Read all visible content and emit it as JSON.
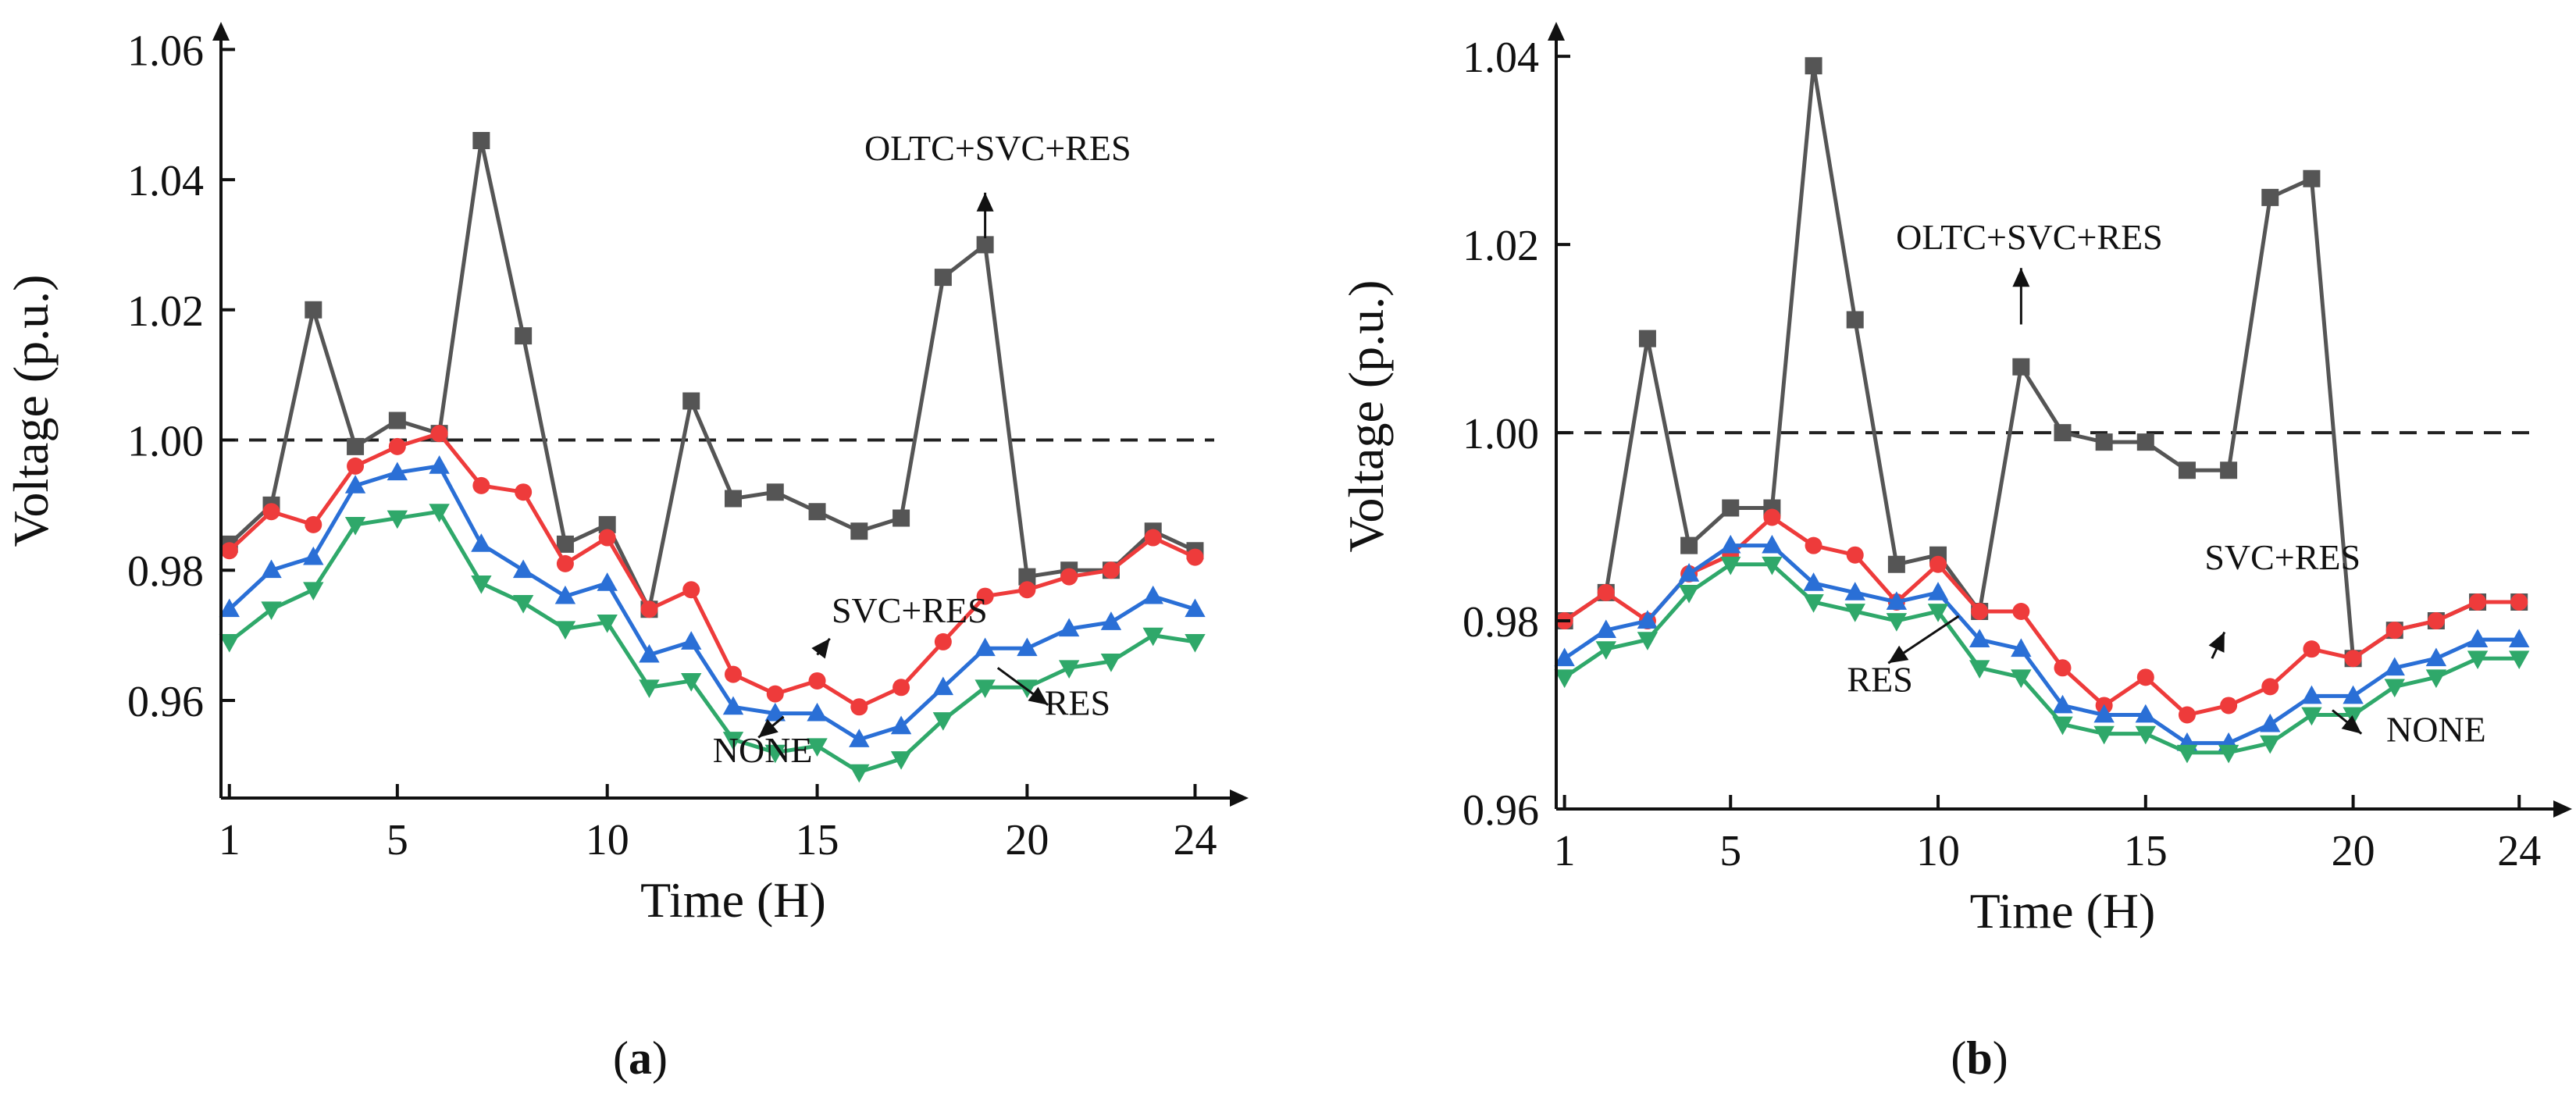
{
  "chart_data": [
    {
      "type": "line",
      "panel": "a",
      "caption_open": "(",
      "caption_letter": "a",
      "caption_close": ")",
      "xlabel": "Time (H)",
      "ylabel": "Voltage (p.u.)",
      "xlim": [
        0.8,
        25.2
      ],
      "ylim": [
        0.945,
        1.064
      ],
      "xticks": [
        1,
        5,
        10,
        15,
        20,
        24
      ],
      "xtick_labels": [
        "1",
        "5",
        "10",
        "15",
        "20",
        "24"
      ],
      "yticks": [
        0.96,
        0.98,
        1.0,
        1.02,
        1.04,
        1.06
      ],
      "ytick_labels": [
        "0.96",
        "0.98",
        "1.00",
        "1.02",
        "1.04",
        "1.06"
      ],
      "reference_line": 1.0,
      "x": [
        1,
        2,
        3,
        4,
        5,
        6,
        7,
        8,
        9,
        10,
        11,
        12,
        13,
        14,
        15,
        16,
        17,
        18,
        19,
        20,
        21,
        22,
        23,
        24
      ],
      "series": [
        {
          "name": "OLTC+SVC+RES",
          "color": "#555555",
          "marker": "square",
          "values": [
            0.984,
            0.99,
            1.02,
            0.999,
            1.003,
            1.001,
            1.046,
            1.016,
            0.984,
            0.987,
            0.974,
            1.006,
            0.991,
            0.992,
            0.989,
            0.986,
            0.988,
            1.025,
            1.03,
            0.979,
            0.98,
            0.98,
            0.986,
            0.983
          ]
        },
        {
          "name": "SVC+RES",
          "color": "#ee3b3b",
          "marker": "circle",
          "values": [
            0.983,
            0.989,
            0.987,
            0.996,
            0.999,
            1.001,
            0.993,
            0.992,
            0.981,
            0.985,
            0.974,
            0.977,
            0.964,
            0.961,
            0.963,
            0.959,
            0.962,
            0.969,
            0.976,
            0.977,
            0.979,
            0.98,
            0.985,
            0.982
          ]
        },
        {
          "name": "RES",
          "color": "#2a6fd6",
          "marker": "triangle-up",
          "values": [
            0.974,
            0.98,
            0.982,
            0.993,
            0.995,
            0.996,
            0.984,
            0.98,
            0.976,
            0.978,
            0.967,
            0.969,
            0.959,
            0.958,
            0.958,
            0.954,
            0.956,
            0.962,
            0.968,
            0.968,
            0.971,
            0.972,
            0.976,
            0.974
          ]
        },
        {
          "name": "NONE",
          "color": "#2fa86a",
          "marker": "triangle-down",
          "values": [
            0.969,
            0.974,
            0.977,
            0.987,
            0.988,
            0.989,
            0.978,
            0.975,
            0.971,
            0.972,
            0.962,
            0.963,
            0.954,
            0.952,
            0.953,
            0.949,
            0.951,
            0.957,
            0.962,
            0.962,
            0.965,
            0.966,
            0.97,
            0.969
          ]
        }
      ],
      "annotations": [
        {
          "text": "OLTC+SVC+RES",
          "series": "OLTC+SVC+RES",
          "x": 19.3,
          "y": 1.043,
          "ax": 19.0,
          "ay": 1.031,
          "ex": 19.0,
          "ey": 1.038
        },
        {
          "text": "SVC+RES",
          "series": "SVC+RES",
          "x": 17.2,
          "y": 0.972,
          "ax": 15.0,
          "ay": 0.967,
          "ex": 15.3,
          "ey": 0.9695
        },
        {
          "text": "RES",
          "series": "RES",
          "x": 21.2,
          "y": 0.9578,
          "ax": 19.3,
          "ay": 0.965,
          "ex": 20.5,
          "ey": 0.9593
        },
        {
          "text": "NONE",
          "series": "NONE",
          "x": 13.7,
          "y": 0.9505,
          "ax": 14.2,
          "ay": 0.9575,
          "ex": 13.6,
          "ey": 0.9543
        }
      ]
    },
    {
      "type": "line",
      "panel": "b",
      "caption_open": "(",
      "caption_letter": "b",
      "caption_close": ")",
      "xlabel": "Time (H)",
      "ylabel": "Voltage (p.u.)",
      "xlim": [
        0.8,
        25.2
      ],
      "ylim": [
        0.96,
        1.0435
      ],
      "xticks": [
        1,
        5,
        10,
        15,
        20,
        24
      ],
      "xtick_labels": [
        "1",
        "5",
        "10",
        "15",
        "20",
        "24"
      ],
      "yticks": [
        0.96,
        0.98,
        1.0,
        1.02,
        1.04
      ],
      "ytick_labels": [
        "0.96",
        "0.98",
        "1.00",
        "1.02",
        "1.04"
      ],
      "reference_line": 1.0,
      "x": [
        1,
        2,
        3,
        4,
        5,
        6,
        7,
        8,
        9,
        10,
        11,
        12,
        13,
        14,
        15,
        16,
        17,
        18,
        19,
        20,
        21,
        22,
        23,
        24
      ],
      "series": [
        {
          "name": "OLTC+SVC+RES",
          "color": "#555555",
          "marker": "square",
          "values": [
            0.98,
            0.983,
            1.01,
            0.988,
            0.992,
            0.992,
            1.039,
            1.012,
            0.986,
            0.987,
            0.981,
            1.007,
            1.0,
            0.999,
            0.999,
            0.996,
            0.996,
            1.025,
            1.027,
            0.976,
            0.979,
            0.98,
            0.982,
            0.982
          ]
        },
        {
          "name": "SVC+RES",
          "color": "#ee3b3b",
          "marker": "circle",
          "values": [
            0.98,
            0.983,
            0.98,
            0.985,
            0.987,
            0.991,
            0.988,
            0.987,
            0.982,
            0.986,
            0.981,
            0.981,
            0.975,
            0.971,
            0.974,
            0.97,
            0.971,
            0.973,
            0.977,
            0.976,
            0.979,
            0.98,
            0.982,
            0.982
          ]
        },
        {
          "name": "RES",
          "color": "#2a6fd6",
          "marker": "triangle-up",
          "values": [
            0.976,
            0.979,
            0.98,
            0.985,
            0.988,
            0.988,
            0.984,
            0.983,
            0.982,
            0.983,
            0.978,
            0.977,
            0.971,
            0.97,
            0.97,
            0.967,
            0.967,
            0.969,
            0.972,
            0.972,
            0.975,
            0.976,
            0.978,
            0.978
          ]
        },
        {
          "name": "NONE",
          "color": "#2fa86a",
          "marker": "triangle-down",
          "values": [
            0.974,
            0.977,
            0.978,
            0.983,
            0.986,
            0.986,
            0.982,
            0.981,
            0.98,
            0.981,
            0.975,
            0.974,
            0.969,
            0.968,
            0.968,
            0.966,
            0.966,
            0.967,
            0.97,
            0.97,
            0.973,
            0.974,
            0.976,
            0.976
          ]
        }
      ],
      "annotations": [
        {
          "text": "OLTC+SVC+RES",
          "series": "OLTC+SVC+RES",
          "x": 12.2,
          "y": 1.0195,
          "ax": 12.0,
          "ay": 1.0115,
          "ex": 12.0,
          "ey": 1.0175
        },
        {
          "text": "SVC+RES",
          "series": "SVC+RES",
          "x": 18.3,
          "y": 0.9855,
          "ax": 16.6,
          "ay": 0.976,
          "ex": 16.9,
          "ey": 0.9788
        },
        {
          "text": "RES",
          "series": "RES",
          "x": 8.6,
          "y": 0.9725,
          "ax": 10.5,
          "ay": 0.9805,
          "ex": 8.8,
          "ey": 0.9755
        },
        {
          "text": "NONE",
          "series": "NONE",
          "x": 22.0,
          "y": 0.9672,
          "ax": 19.5,
          "ay": 0.9705,
          "ex": 20.2,
          "ey": 0.968
        }
      ]
    }
  ]
}
